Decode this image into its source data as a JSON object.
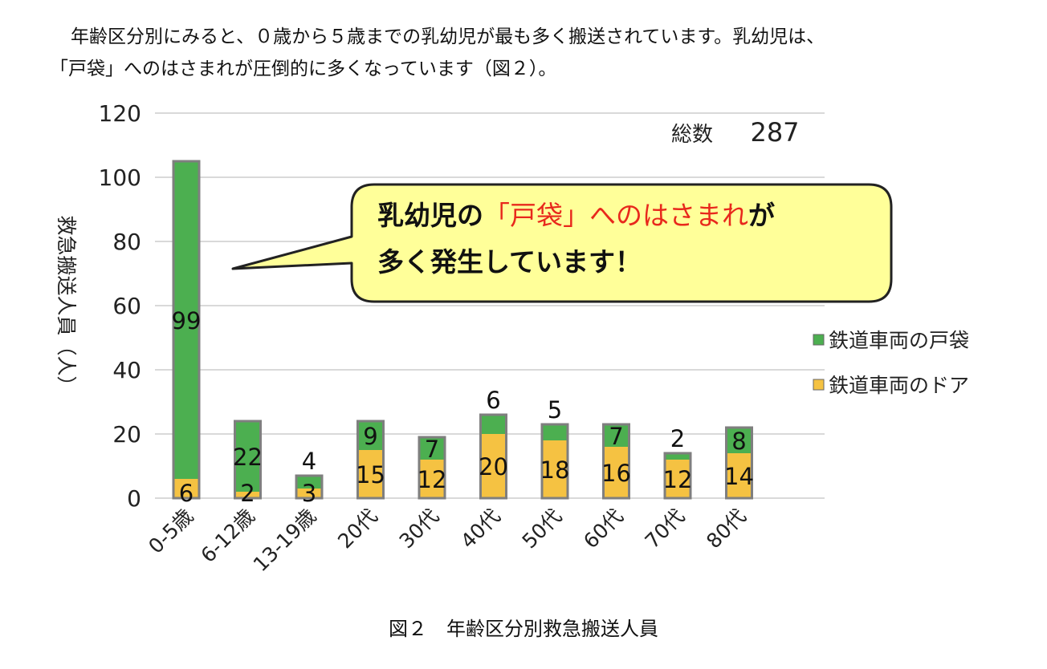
{
  "intro": {
    "line1": "年齢区分別にみると、０歳から５歳までの乳幼児が最も多く搬送されています。乳幼児は、",
    "line2": "「戸袋」へのはさまれが圧倒的に多くなっています（図２）。"
  },
  "caption": "図２　年齢区分別救急搬送人員",
  "callout": {
    "line1_pre": "乳幼児の",
    "line1_highlight": "「戸袋」へのはさまれ",
    "line1_post": "が",
    "line2": "多く発生しています！",
    "highlight_color": "#e8281c",
    "fill_color": "#ffff99"
  },
  "chart_data": {
    "type": "bar",
    "stacked": true,
    "categories": [
      "0-5歳",
      "6-12歳",
      "13-19歳",
      "20代",
      "30代",
      "40代",
      "50代",
      "60代",
      "70代",
      "80代"
    ],
    "series": [
      {
        "name": "鉄道車両のドア",
        "color": "#f5c242",
        "values": [
          6,
          2,
          3,
          15,
          12,
          20,
          18,
          16,
          12,
          14
        ]
      },
      {
        "name": "鉄道車両の戸袋",
        "color": "#4caf50",
        "values": [
          99,
          22,
          4,
          9,
          7,
          6,
          5,
          7,
          2,
          8
        ]
      }
    ],
    "ylabel": "救急搬送人員（人）",
    "ylim": [
      0,
      120
    ],
    "yticks": [
      0,
      20,
      40,
      60,
      80,
      100,
      120
    ],
    "grid": true,
    "legend_position": "right",
    "legend_order": [
      "鉄道車両の戸袋",
      "鉄道車両のドア"
    ],
    "total_label": "総数",
    "total_value": "287"
  }
}
